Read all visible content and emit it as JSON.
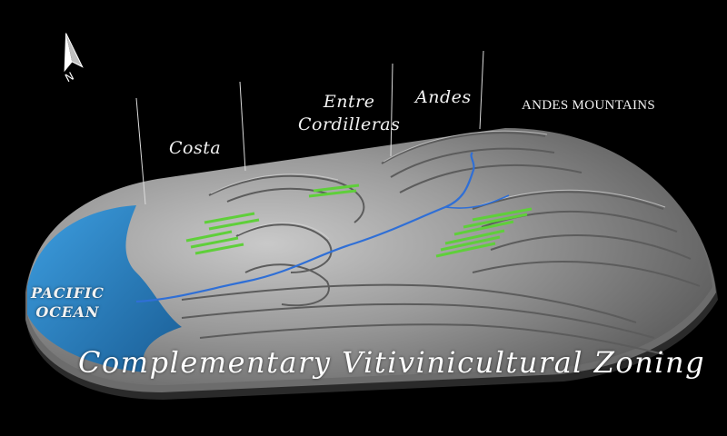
{
  "compass": {
    "label": "N"
  },
  "zones": {
    "costa": "Costa",
    "entre_line1": "Entre",
    "entre_line2": "Cordilleras",
    "andes": "Andes",
    "andes_mountains": "ANDES MOUNTAINS"
  },
  "ocean": {
    "line1": "PACIFIC",
    "line2": "OCEAN"
  },
  "caption": "Complementary Vitivinicultural Zoning",
  "colors": {
    "background": "#000000",
    "terrain": "#8a8a8a",
    "ocean": "#2a85c8",
    "river": "#2f6fd6",
    "vineyard": "#5fcf3a",
    "text": "#f2f2f2"
  }
}
